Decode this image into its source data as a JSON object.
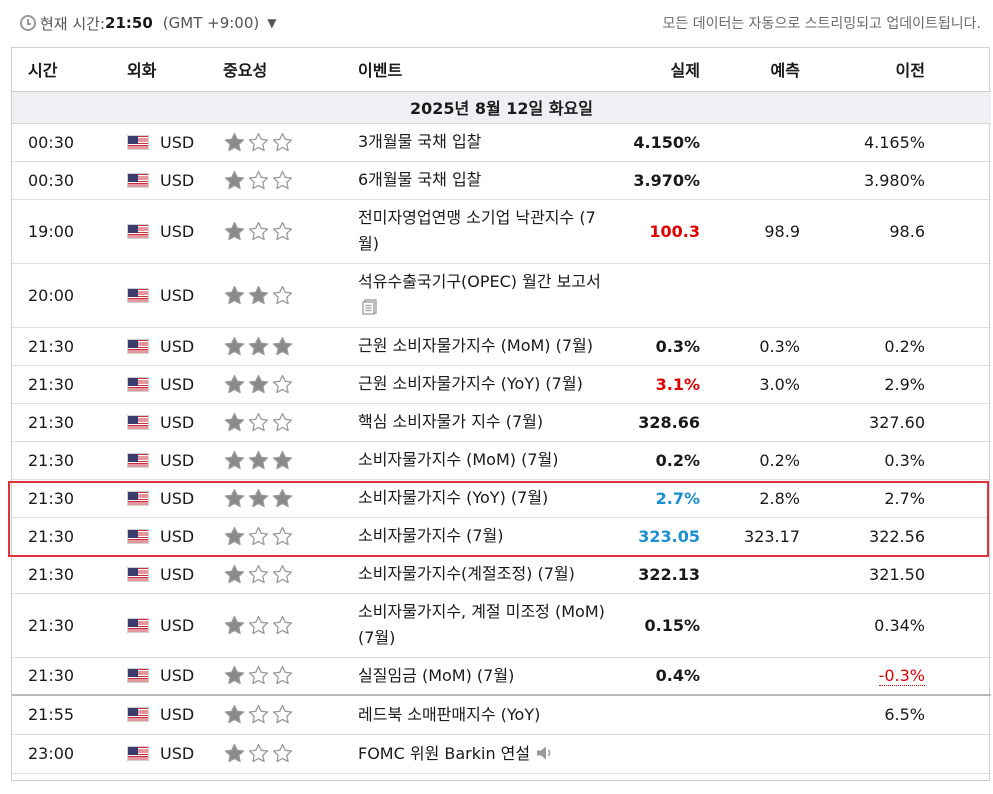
{
  "header": {
    "clock_label": "현재 시간:",
    "clock_time": "21:50",
    "timezone": "(GMT +9:00)",
    "stream_note": "모든 데이터는 자동으로 스트리밍되고 업데이트됩니다."
  },
  "columns": {
    "time": "시간",
    "currency": "외화",
    "importance": "중요성",
    "event": "이벤트",
    "actual": "실제",
    "forecast": "예측",
    "previous": "이전"
  },
  "date_label": "2025년 8월 12일 화요일",
  "colors": {
    "highlight": "#e0323a",
    "red": "#e00000",
    "blue": "#1a90d0"
  },
  "rows": [
    {
      "time": "00:30",
      "currency": "USD",
      "stars": 1,
      "event": "3개월물 국채 입찰",
      "actual": "4.150%",
      "actual_color": "",
      "forecast": "",
      "previous": "4.165%",
      "prev_style": ""
    },
    {
      "time": "00:30",
      "currency": "USD",
      "stars": 1,
      "event": "6개월물 국채 입찰",
      "actual": "3.970%",
      "actual_color": "",
      "forecast": "",
      "previous": "3.980%",
      "prev_style": ""
    },
    {
      "time": "19:00",
      "currency": "USD",
      "stars": 1,
      "event": "전미자영업연맹 소기업 낙관지수 (7월)",
      "actual": "100.3",
      "actual_color": "red",
      "forecast": "98.9",
      "previous": "98.6",
      "prev_style": ""
    },
    {
      "time": "20:00",
      "currency": "USD",
      "stars": 2,
      "event": "석유수출국기구(OPEC) 월간 보고서",
      "actual": "",
      "actual_color": "",
      "forecast": "",
      "previous": "",
      "prev_style": "",
      "icon": "document-icon"
    },
    {
      "time": "21:30",
      "currency": "USD",
      "stars": 3,
      "event": "근원 소비자물가지수 (MoM) (7월)",
      "actual": "0.3%",
      "actual_color": "",
      "forecast": "0.3%",
      "previous": "0.2%",
      "prev_style": ""
    },
    {
      "time": "21:30",
      "currency": "USD",
      "stars": 2,
      "event": "근원 소비자물가지수 (YoY) (7월)",
      "actual": "3.1%",
      "actual_color": "red",
      "forecast": "3.0%",
      "previous": "2.9%",
      "prev_style": ""
    },
    {
      "time": "21:30",
      "currency": "USD",
      "stars": 1,
      "event": "핵심 소비자물가 지수 (7월)",
      "actual": "328.66",
      "actual_color": "",
      "forecast": "",
      "previous": "327.60",
      "prev_style": ""
    },
    {
      "time": "21:30",
      "currency": "USD",
      "stars": 3,
      "event": "소비자물가지수 (MoM) (7월)",
      "actual": "0.2%",
      "actual_color": "",
      "forecast": "0.2%",
      "previous": "0.3%",
      "prev_style": ""
    },
    {
      "time": "21:30",
      "currency": "USD",
      "stars": 3,
      "event": "소비자물가지수 (YoY) (7월)",
      "actual": "2.7%",
      "actual_color": "blue",
      "forecast": "2.8%",
      "previous": "2.7%",
      "prev_style": ""
    },
    {
      "time": "21:30",
      "currency": "USD",
      "stars": 1,
      "event": "소비자물가지수 (7월)",
      "actual": "323.05",
      "actual_color": "blue",
      "forecast": "323.17",
      "previous": "322.56",
      "prev_style": ""
    },
    {
      "time": "21:30",
      "currency": "USD",
      "stars": 1,
      "event": "소비자물가지수(계절조정) (7월)",
      "actual": "322.13",
      "actual_color": "",
      "forecast": "",
      "previous": "321.50",
      "prev_style": ""
    },
    {
      "time": "21:30",
      "currency": "USD",
      "stars": 1,
      "event": "소비자물가지수, 계절 미조정 (MoM) (7월)",
      "actual": "0.15%",
      "actual_color": "",
      "forecast": "",
      "previous": "0.34%",
      "prev_style": ""
    },
    {
      "time": "21:30",
      "currency": "USD",
      "stars": 1,
      "event": "실질임금 (MoM) (7월)",
      "actual": "0.4%",
      "actual_color": "",
      "forecast": "",
      "previous": "-0.3%",
      "prev_style": "neg"
    },
    {
      "time": "21:55",
      "currency": "USD",
      "stars": 1,
      "event": "레드북 소매판매지수 (YoY)",
      "actual": "",
      "actual_color": "",
      "forecast": "",
      "previous": "6.5%",
      "prev_style": ""
    },
    {
      "time": "23:00",
      "currency": "USD",
      "stars": 1,
      "event": "FOMC 위원 Barkin 연설",
      "actual": "",
      "actual_color": "",
      "forecast": "",
      "previous": "",
      "prev_style": "",
      "icon": "speaker-icon"
    }
  ]
}
